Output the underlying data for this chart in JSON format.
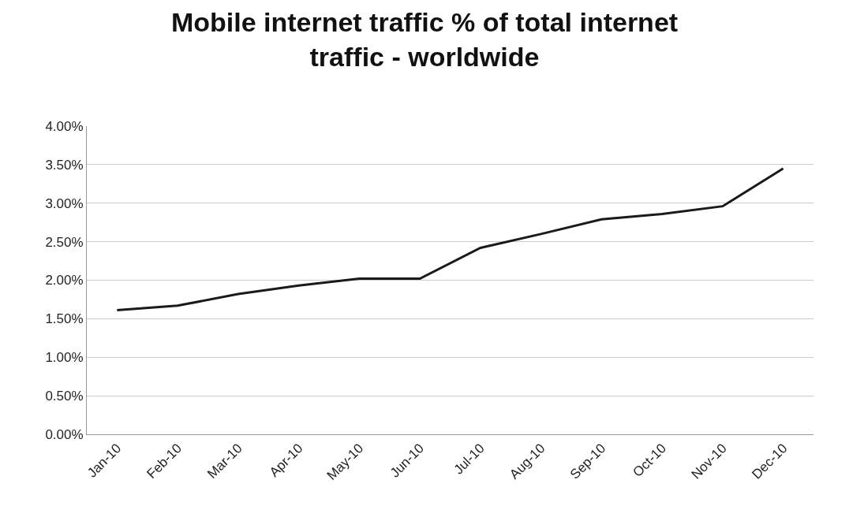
{
  "chart_data": {
    "type": "line",
    "title": "Mobile internet traffic % of total internet traffic - worldwide",
    "categories": [
      "Jan-10",
      "Feb-10",
      "Mar-10",
      "Apr-10",
      "May-10",
      "Jun-10",
      "Jul-10",
      "Aug-10",
      "Sep-10",
      "Oct-10",
      "Nov-10",
      "Dec-10"
    ],
    "series": [
      {
        "color": "#1a1a1a",
        "values": [
          1.61,
          1.67,
          1.82,
          1.93,
          2.02,
          2.02,
          2.42,
          2.6,
          2.79,
          2.86,
          2.96,
          3.45
        ]
      }
    ],
    "ylim": [
      0,
      4
    ],
    "yticks": [
      {
        "value": 0,
        "label": "0.00%"
      },
      {
        "value": 0.5,
        "label": "0.50%"
      },
      {
        "value": 1,
        "label": "1.00%"
      },
      {
        "value": 1.5,
        "label": "1.50%"
      },
      {
        "value": 2,
        "label": "2.00%"
      },
      {
        "value": 2.5,
        "label": "2.50%"
      },
      {
        "value": 3,
        "label": "3.00%"
      },
      {
        "value": 3.5,
        "label": "3.50%"
      },
      {
        "value": 4,
        "label": "4.00%"
      }
    ],
    "grid": "y",
    "marker": "none",
    "line_style": "solid"
  }
}
